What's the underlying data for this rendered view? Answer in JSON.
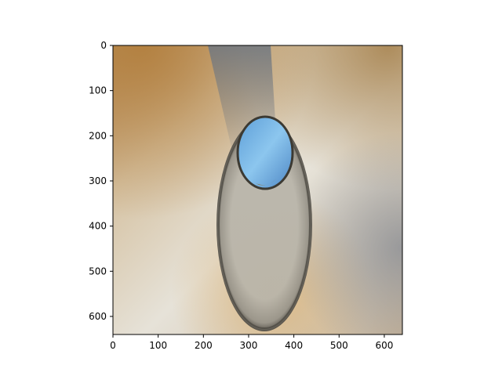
{
  "chart_data": {
    "type": "image",
    "title": "",
    "xlabel": "",
    "ylabel": "",
    "xlim": [
      0,
      640
    ],
    "ylim": [
      640,
      0
    ],
    "x_ticks": [
      0,
      100,
      200,
      300,
      400,
      500,
      600
    ],
    "y_ticks": [
      0,
      100,
      200,
      300,
      400,
      500,
      600
    ],
    "y_axis_inverted": true,
    "grid": false,
    "legend": "none",
    "image_content": "photo of a round drain-like hole in a beige/white surface with bright blue sky reflection inside"
  },
  "axes": {
    "x_tick_labels": [
      "0",
      "100",
      "200",
      "300",
      "400",
      "500",
      "600"
    ],
    "y_tick_labels": [
      "0",
      "100",
      "200",
      "300",
      "400",
      "500",
      "600"
    ]
  },
  "colors": {
    "background": "#ffffff",
    "axis": "#000000",
    "surface_light": "#e2dcd0",
    "surface_warm": "#c9a070",
    "hole_rim": "#9e9b92",
    "hole_inner": "#7ab4e0"
  }
}
